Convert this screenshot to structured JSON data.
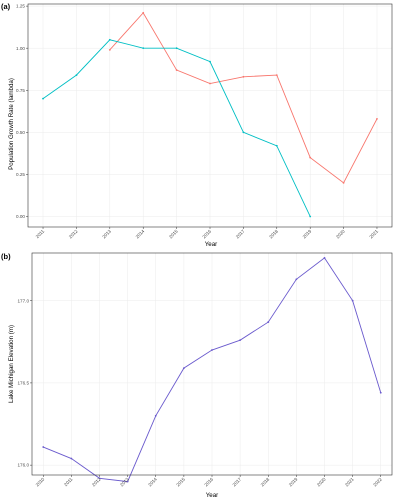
{
  "chart_data": [
    {
      "type": "line",
      "panel_label": "(a)",
      "xlabel": "Year",
      "ylabel": "Population Growth Rate (lambda)",
      "x": [
        2011,
        2012,
        2013,
        2014,
        2015,
        2016,
        2017,
        2018,
        2019,
        2020,
        2021
      ],
      "xlim": [
        2010.55,
        2021.45
      ],
      "ylim": [
        -0.0625,
        1.2625
      ],
      "yticks": [
        0.0,
        0.25,
        0.5,
        0.75,
        1.0,
        1.25
      ],
      "ytick_labels": [
        "0.00",
        "0.25",
        "0.50",
        "0.75",
        "1.00",
        "1.25"
      ],
      "xticks": [
        2011,
        2012,
        2013,
        2014,
        2015,
        2016,
        2017,
        2018,
        2019,
        2020,
        2021
      ],
      "xtick_labels": [
        "2011",
        "2012",
        "2013",
        "2014",
        "2015",
        "2016",
        "2017",
        "2018",
        "2019",
        "2020",
        "2021"
      ],
      "grid": true,
      "series": [
        {
          "color": "#F8766D",
          "points": [
            [
              2013,
              0.99
            ],
            [
              2014,
              1.21
            ],
            [
              2015,
              0.87
            ],
            [
              2016,
              0.79
            ],
            [
              2017,
              0.83
            ],
            [
              2018,
              0.84
            ],
            [
              2019,
              0.35
            ],
            [
              2020,
              0.2
            ],
            [
              2021,
              0.58
            ]
          ]
        },
        {
          "color": "#00BFC4",
          "points": [
            [
              2011,
              0.7
            ],
            [
              2012,
              0.84
            ],
            [
              2013,
              1.05
            ],
            [
              2014,
              1.0
            ],
            [
              2015,
              1.0
            ],
            [
              2016,
              0.92
            ],
            [
              2017,
              0.5
            ],
            [
              2018,
              0.42
            ],
            [
              2019,
              0.0
            ]
          ]
        }
      ]
    },
    {
      "type": "line",
      "panel_label": "(b)",
      "xlabel": "Year",
      "ylabel": "Lake Michigan Elevation (m)",
      "x": [
        2010,
        2011,
        2012,
        2013,
        2014,
        2015,
        2016,
        2017,
        2018,
        2019,
        2020,
        2021,
        2022
      ],
      "xlim": [
        2009.6,
        2022.4
      ],
      "ylim": [
        175.94,
        177.29
      ],
      "yticks": [
        176.0,
        176.5,
        177.0
      ],
      "ytick_labels": [
        "176.0",
        "176.5",
        "177.0"
      ],
      "xticks": [
        2010,
        2011,
        2012,
        2013,
        2014,
        2015,
        2016,
        2017,
        2018,
        2019,
        2020,
        2021,
        2022
      ],
      "xtick_labels": [
        "2010",
        "2011",
        "2012",
        "2013",
        "2014",
        "2015",
        "2016",
        "2017",
        "2018",
        "2019",
        "2020",
        "2021",
        "2022"
      ],
      "grid": true,
      "series": [
        {
          "color": "#6A5ACD",
          "points": [
            [
              2010,
              176.11
            ],
            [
              2011,
              176.04
            ],
            [
              2012,
              175.92
            ],
            [
              2013,
              175.9
            ],
            [
              2014,
              176.3
            ],
            [
              2015,
              176.59
            ],
            [
              2016,
              176.7
            ],
            [
              2017,
              176.76
            ],
            [
              2018,
              176.87
            ],
            [
              2019,
              177.13
            ],
            [
              2020,
              177.26
            ],
            [
              2021,
              177.0
            ],
            [
              2022,
              176.44
            ]
          ]
        }
      ]
    }
  ]
}
